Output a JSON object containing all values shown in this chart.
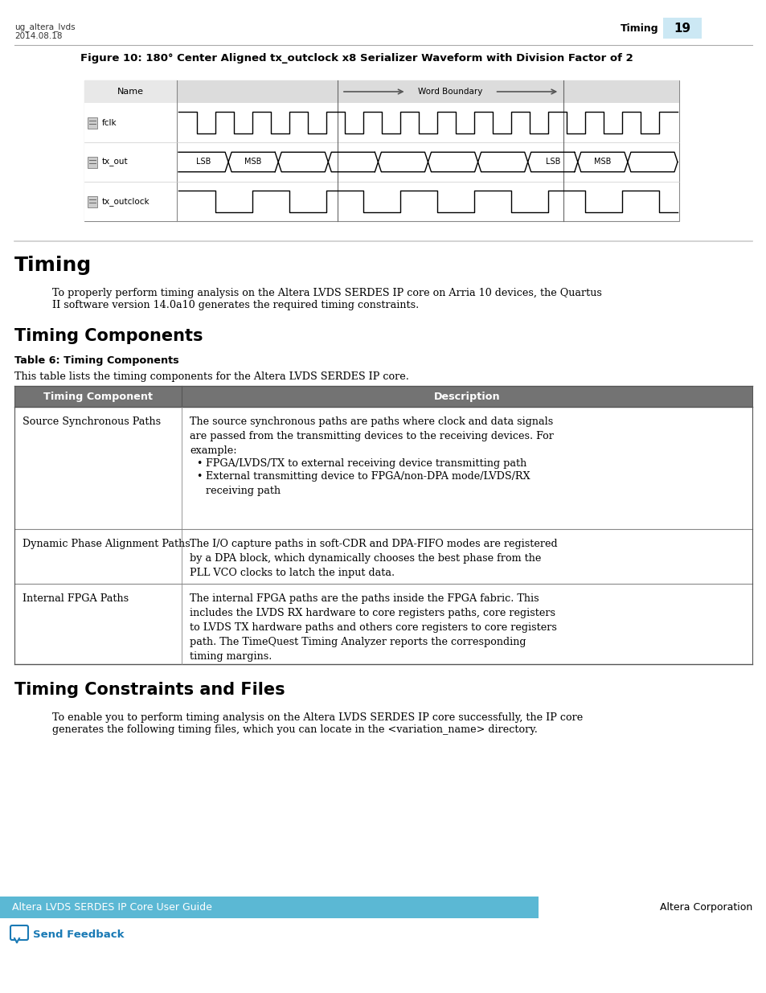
{
  "page_meta_left_line1": "ug_altera_lvds",
  "page_meta_left_line2": "2014.08.18",
  "page_meta_right_label": "Timing",
  "page_number": "19",
  "figure_title": "Figure 10: 180° Center Aligned tx_outclock x8 Serializer Waveform with Division Factor of 2",
  "wf_signal_names": [
    "fclk",
    "tx_out",
    "tx_outclock"
  ],
  "wf_word_boundary": "Word Boundary",
  "wf_lsb": "LSB",
  "wf_msb": "MSB",
  "section1_title": "Timing",
  "section1_body_line1": "To properly perform timing analysis on the Altera LVDS SERDES IP core on Arria 10 devices, the Quartus",
  "section1_body_line2": "II software version 14.0a10 generates the required timing constraints.",
  "section2_title": "Timing Components",
  "table_label": "Table 6: Timing Components",
  "table_intro": "This table lists the timing components for the Altera LVDS SERDES IP core.",
  "table_header_col1": "Timing Component",
  "table_header_col2": "Description",
  "row1_col1": "Source Synchronous Paths",
  "row1_col2_main": "The source synchronous paths are paths where clock and data signals\nare passed from the transmitting devices to the receiving devices. For\nexample:",
  "row1_bullet1": "FPGA/LVDS/TX to external receiving device transmitting path",
  "row1_bullet2": "External transmitting device to FPGA/non-DPA mode/LVDS/RX\nreceiving path",
  "row2_col1": "Dynamic Phase Alignment Paths",
  "row2_col2": "The I/O capture paths in soft-CDR and DPA-FIFO modes are registered\nby a DPA block, which dynamically chooses the best phase from the\nPLL VCO clocks to latch the input data.",
  "row3_col1": "Internal FPGA Paths",
  "row3_col2": "The internal FPGA paths are the paths inside the FPGA fabric. This\nincludes the LVDS RX hardware to core registers paths, core registers\nto LVDS TX hardware paths and others core registers to core registers\npath. The TimeQuest Timing Analyzer reports the corresponding\ntiming margins.",
  "section3_title": "Timing Constraints and Files",
  "section3_body_line1": "To enable you to perform timing analysis on the Altera LVDS SERDES IP core successfully, the IP core",
  "section3_body_line2": "generates the following timing files, which you can locate in the <variation_name> directory.",
  "footer_left": "Altera LVDS SERDES IP Core User Guide",
  "footer_right": "Altera Corporation",
  "footer_feedback": "Send Feedback",
  "header_bg_color": "#cce8f4",
  "table_header_bg": "#737373",
  "table_header_fg": "#ffffff",
  "table_border_color": "#888888",
  "footer_bar_color": "#5bb8d4",
  "link_color": "#1a7ab5",
  "wf_bg_color": "#f0f0f0",
  "wf_header_bg": "#e8e8e8",
  "wf_border_color": "#888888"
}
